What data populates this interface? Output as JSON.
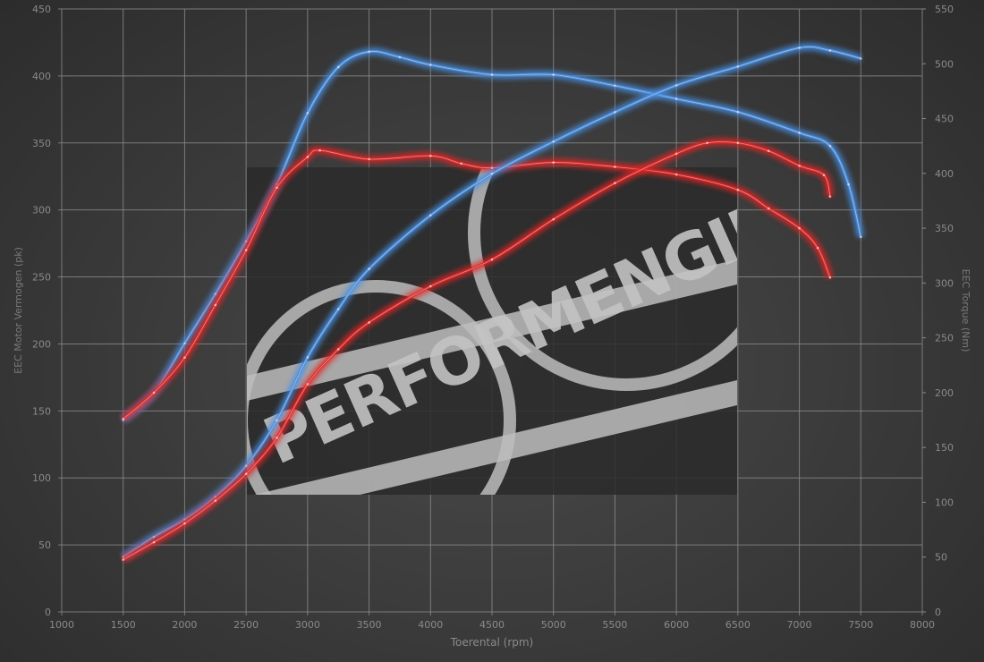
{
  "chart_data": {
    "type": "line",
    "xlabel": "Toerental (rpm)",
    "ylabel": "EEC Motor Vermogen (pk)",
    "y2label": "EEC Torque (Nm)",
    "xlim": [
      1000,
      8000
    ],
    "ylim": [
      0,
      450
    ],
    "y2lim": [
      0,
      550
    ],
    "xticks": [
      1000,
      1500,
      2000,
      2500,
      3000,
      3500,
      4000,
      4500,
      5000,
      5500,
      6000,
      6500,
      7000,
      7500,
      8000
    ],
    "yticks": [
      0,
      50,
      100,
      150,
      200,
      250,
      300,
      350,
      400,
      450
    ],
    "y2ticks": [
      0,
      50,
      100,
      150,
      200,
      250,
      300,
      350,
      400,
      450,
      500,
      550
    ],
    "grid": true,
    "watermark": "PERFORMENGINE",
    "series": [
      {
        "axis": "right",
        "color": "#4a8fe0",
        "x": [
          1500,
          1750,
          2000,
          2250,
          2500,
          2750,
          3000,
          3250,
          3500,
          3750,
          4000,
          4500,
          5000,
          5500,
          6000,
          6500,
          7000,
          7250,
          7400,
          7500
        ],
        "values": [
          175,
          200,
          245,
          290,
          338,
          390,
          455,
          497,
          511,
          506,
          499,
          490,
          490,
          480,
          468,
          456,
          437,
          425,
          390,
          342
        ]
      },
      {
        "axis": "right",
        "color": "#e02828",
        "x": [
          1500,
          1750,
          2000,
          2250,
          2500,
          2750,
          3000,
          3100,
          3500,
          4000,
          4250,
          4500,
          5000,
          5500,
          6000,
          6500,
          6750,
          7000,
          7150,
          7250
        ],
        "values": [
          176,
          200,
          232,
          280,
          330,
          387,
          415,
          421,
          413,
          416,
          409,
          405,
          410,
          406,
          399,
          385,
          368,
          350,
          332,
          305
        ]
      },
      {
        "axis": "left",
        "color": "#4a8fe0",
        "x": [
          1500,
          1750,
          2000,
          2250,
          2500,
          2750,
          3000,
          3250,
          3500,
          4000,
          4500,
          5000,
          5500,
          6000,
          6500,
          7000,
          7250,
          7500
        ],
        "values": [
          41,
          56,
          69,
          86,
          109,
          143,
          190,
          226,
          256,
          296,
          327,
          351,
          373,
          393,
          407,
          421,
          419,
          413
        ]
      },
      {
        "axis": "left",
        "color": "#e02828",
        "x": [
          1500,
          1750,
          2000,
          2250,
          2500,
          2750,
          3000,
          3250,
          3500,
          4000,
          4500,
          5000,
          5500,
          6000,
          6250,
          6500,
          6750,
          7000,
          7200,
          7250
        ],
        "values": [
          39,
          52,
          66,
          83,
          103,
          130,
          170,
          196,
          216,
          243,
          263,
          293,
          320,
          342,
          350,
          350,
          344,
          333,
          326,
          310
        ]
      }
    ]
  }
}
